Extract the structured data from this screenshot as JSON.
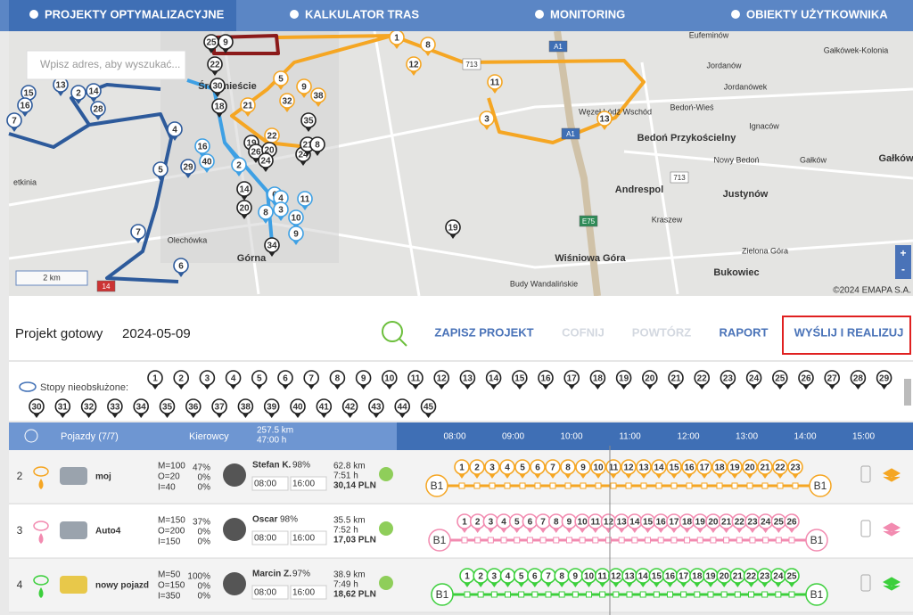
{
  "nav": {
    "tabs": [
      "PROJEKTY OPTYMALIZACYJNE",
      "KALKULATOR TRAS",
      "MONITORING",
      "OBIEKTY UŻYTKOWNIKA"
    ]
  },
  "map": {
    "search_placeholder": "Wpisz adres, aby wyszukać...",
    "scale": "2 km",
    "copyright": "©2024 EMAPA S.A.",
    "zoom_in": "+",
    "zoom_out": "-",
    "places": [
      "Śródmieście",
      "Górna",
      "Andrespol",
      "Bedoń Przykościelny",
      "Justynów",
      "Wiśniowa Góra",
      "Bukowiec",
      "Kraszew",
      "Bedoń-Wieś",
      "Nowy Bedoń",
      "Jordanów",
      "Jordanówek",
      "Eufeminów",
      "Zielona Góra",
      "Budy Wandalińskie",
      "Gałkówek-Kolonia",
      "Gałków",
      "Ignaców",
      "Węzeł Łódź Wschód",
      "Olechówka",
      "etkinia",
      "Gałków"
    ],
    "road_labels": [
      "A1",
      "A1",
      "E75",
      "713",
      "713",
      "14"
    ],
    "pins": [
      {
        "label": 1,
        "color": "#f5a623"
      },
      {
        "label": 8,
        "color": "#f5a623"
      },
      {
        "label": 12,
        "color": "#f5a623"
      },
      {
        "label": 11,
        "color": "#f5a623"
      },
      {
        "label": 3,
        "color": "#f5a623"
      },
      {
        "label": 13,
        "color": "#f5a623"
      },
      {
        "label": 5,
        "color": "#f5a623"
      },
      {
        "label": 9,
        "color": "#f5a623"
      },
      {
        "label": 32,
        "color": "#f5a623"
      },
      {
        "label": 21,
        "color": "#f5a623"
      },
      {
        "label": 22,
        "color": "#f5a623"
      },
      {
        "label": 38,
        "color": "#f5a623"
      },
      {
        "label": 15,
        "color": "#2d5a9b"
      },
      {
        "label": 16,
        "color": "#2d5a9b"
      },
      {
        "label": 13,
        "color": "#2d5a9b"
      },
      {
        "label": 2,
        "color": "#2d5a9b"
      },
      {
        "label": 14,
        "color": "#2d5a9b"
      },
      {
        "label": 28,
        "color": "#2d5a9b"
      },
      {
        "label": 7,
        "color": "#2d5a9b"
      },
      {
        "label": 4,
        "color": "#2d5a9b"
      },
      {
        "label": 5,
        "color": "#2d5a9b"
      },
      {
        "label": 29,
        "color": "#2d5a9b"
      },
      {
        "label": 7,
        "color": "#2d5a9b"
      },
      {
        "label": 6,
        "color": "#2d5a9b"
      },
      {
        "label": 25,
        "color": "#222222"
      },
      {
        "label": 9,
        "color": "#222222"
      },
      {
        "label": 22,
        "color": "#222222"
      },
      {
        "label": 30,
        "color": "#222222"
      },
      {
        "label": 18,
        "color": "#222222"
      },
      {
        "label": 16,
        "color": "#3ea0e4"
      },
      {
        "label": 40,
        "color": "#3ea0e4"
      },
      {
        "label": 2,
        "color": "#3ea0e4"
      },
      {
        "label": 14,
        "color": "#222222"
      },
      {
        "label": 20,
        "color": "#222222"
      },
      {
        "label": 34,
        "color": "#222222"
      },
      {
        "label": 19,
        "color": "#222222"
      },
      {
        "label": 35,
        "color": "#222222"
      },
      {
        "label": 6,
        "color": "#3ea0e4"
      },
      {
        "label": 4,
        "color": "#3ea0e4"
      },
      {
        "label": 3,
        "color": "#3ea0e4"
      },
      {
        "label": 8,
        "color": "#3ea0e4"
      },
      {
        "label": 11,
        "color": "#3ea0e4"
      },
      {
        "label": 10,
        "color": "#3ea0e4"
      },
      {
        "label": 9,
        "color": "#3ea0e4"
      },
      {
        "label": 19,
        "color": "#222222"
      },
      {
        "label": 26,
        "color": "#222222"
      },
      {
        "label": 20,
        "color": "#222222"
      },
      {
        "label": 24,
        "color": "#222222"
      },
      {
        "label": 24,
        "color": "#222222"
      },
      {
        "label": 21,
        "color": "#222222"
      },
      {
        "label": 8,
        "color": "#222222"
      }
    ]
  },
  "toolbar": {
    "status": "Projekt gotowy",
    "date": "2024-05-09",
    "buttons": [
      {
        "label": "ZAPISZ PROJEKT",
        "enabled": true
      },
      {
        "label": "COFNIJ",
        "enabled": false
      },
      {
        "label": "POWTÓRZ",
        "enabled": false
      },
      {
        "label": "RAPORT",
        "enabled": true
      },
      {
        "label": "WYŚLIJ I REALIZUJ",
        "enabled": true
      }
    ]
  },
  "unserved": {
    "label": "Stopy nieobsłużone:",
    "stops": [
      1,
      2,
      3,
      4,
      5,
      6,
      7,
      8,
      9,
      10,
      11,
      12,
      13,
      14,
      15,
      16,
      17,
      18,
      19,
      20,
      21,
      22,
      23,
      24,
      25,
      26,
      27,
      28,
      29,
      30,
      31,
      32,
      33,
      34,
      35,
      36,
      37,
      38,
      39,
      40,
      41,
      42,
      43,
      44,
      45
    ]
  },
  "table": {
    "header": {
      "vehicles": "Pojazdy (7/7)",
      "drivers": "Kierowcy",
      "total_distance": "257.5 km",
      "total_time": "47:00 h",
      "hours": [
        "08:00",
        "09:00",
        "10:00",
        "11:00",
        "12:00",
        "13:00",
        "14:00",
        "15:00"
      ]
    },
    "rows": [
      {
        "index": 2,
        "name": "moj",
        "capacity": [
          "M=100",
          "O=20",
          "I=40"
        ],
        "load": [
          "47%",
          "0%",
          "0%"
        ],
        "driver": "Stefan K.",
        "score": "98%",
        "start": "08:00",
        "end": "16:00",
        "distance": "62.8 km",
        "duration": "7:51 h",
        "cost": "30,14 PLN",
        "depot": "B1",
        "color": "#f5a623",
        "stops": [
          1,
          2,
          3,
          4,
          5,
          6,
          7,
          8,
          9,
          10,
          11,
          12,
          13,
          14,
          15,
          16,
          17,
          18,
          19,
          20,
          21,
          22,
          23
        ]
      },
      {
        "index": 3,
        "name": "Auto4",
        "capacity": [
          "M=150",
          "O=200",
          "I=150"
        ],
        "load": [
          "37%",
          "0%",
          "0%"
        ],
        "driver": "Oscar",
        "score": "98%",
        "start": "08:00",
        "end": "16:00",
        "distance": "35.5 km",
        "duration": "7:52 h",
        "cost": "17,03 PLN",
        "depot": "B1",
        "color": "#f28bb0",
        "stops": [
          1,
          2,
          3,
          4,
          5,
          6,
          7,
          8,
          9,
          10,
          11,
          12,
          13,
          14,
          15,
          16,
          17,
          18,
          19,
          20,
          21,
          22,
          23,
          24,
          25,
          26
        ]
      },
      {
        "index": 4,
        "name": "nowy pojazd",
        "capacity": [
          "M=50",
          "O=150",
          "I=350"
        ],
        "load": [
          "100%",
          "0%",
          "0%"
        ],
        "driver": "Marcin Z.",
        "score": "97%",
        "start": "08:00",
        "end": "16:00",
        "distance": "38.9 km",
        "duration": "7:49 h",
        "cost": "18,62 PLN",
        "depot": "B1",
        "color": "#3ccf3c",
        "stops": [
          1,
          2,
          3,
          4,
          5,
          6,
          7,
          8,
          9,
          10,
          11,
          12,
          13,
          14,
          15,
          16,
          17,
          18,
          19,
          20,
          21,
          22,
          23,
          24,
          25
        ]
      }
    ]
  }
}
